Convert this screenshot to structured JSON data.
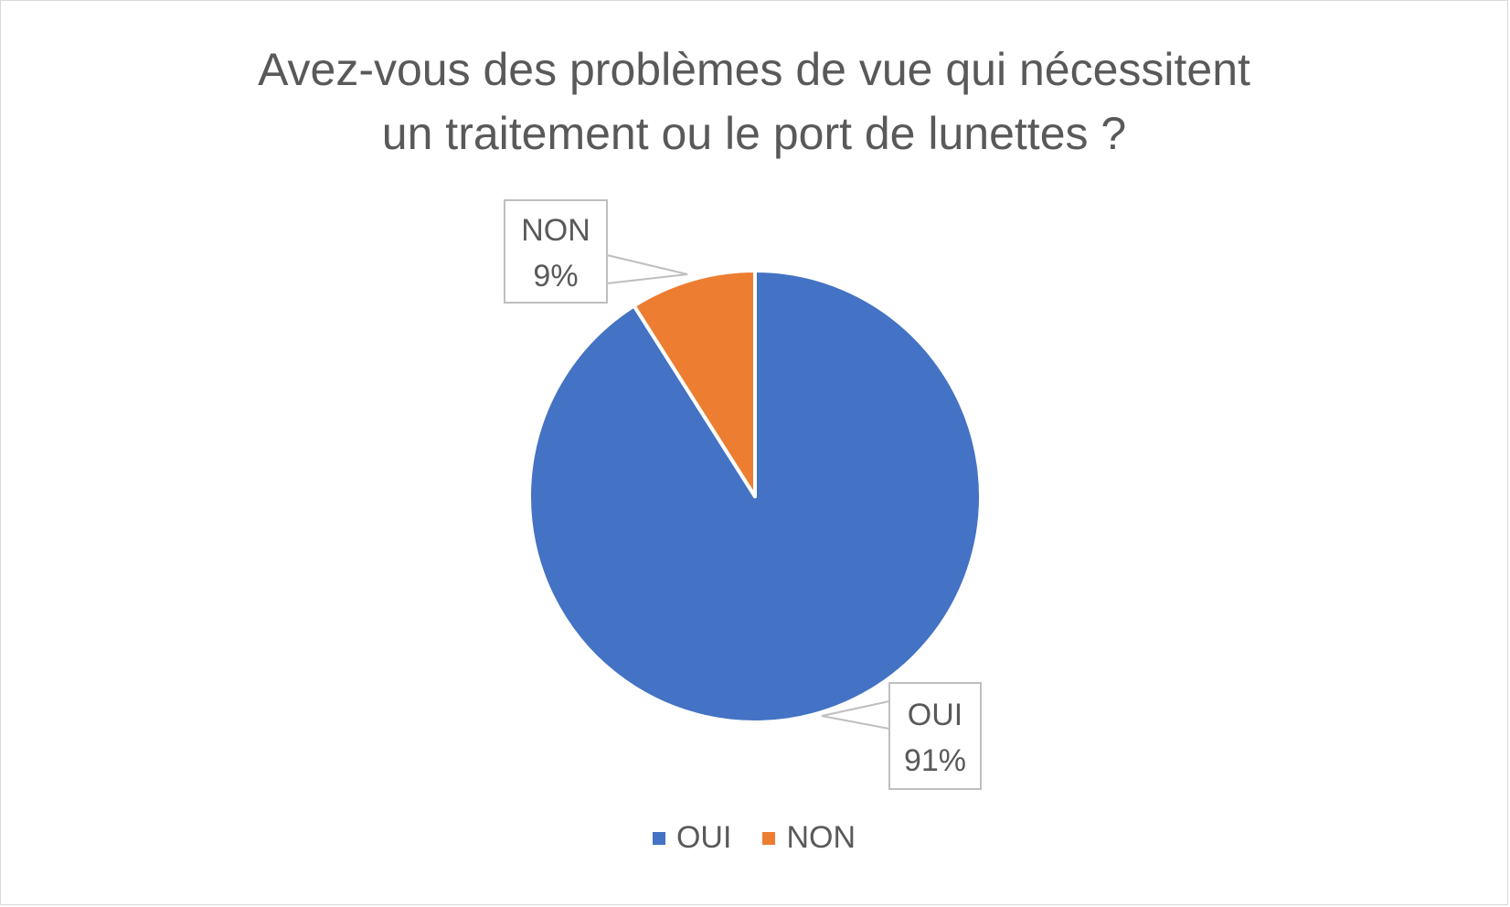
{
  "chart_data": {
    "type": "pie",
    "title_lines": [
      "Avez-vous des problèmes de vue qui nécessitent",
      "un traitement ou le port de lunettes ?"
    ],
    "slices": [
      {
        "label": "OUI",
        "value": 91,
        "percent_label": "91%",
        "color": "#4472C4"
      },
      {
        "label": "NON",
        "value": 9,
        "percent_label": "9%",
        "color": "#ED7D31"
      }
    ],
    "legend": {
      "position": "bottom",
      "items": [
        "OUI",
        "NON"
      ]
    }
  }
}
